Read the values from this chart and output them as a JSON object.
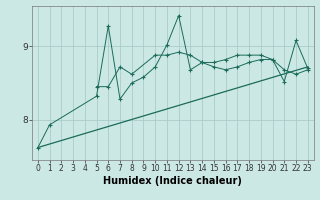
{
  "xlabel": "Humidex (Indice chaleur)",
  "bg_color": "#cce8e4",
  "line_color": "#1a6b5a",
  "grid_color": "#aacccc",
  "x_values": [
    0,
    1,
    2,
    3,
    4,
    5,
    6,
    7,
    8,
    9,
    10,
    11,
    12,
    13,
    14,
    15,
    16,
    17,
    18,
    19,
    20,
    21,
    22,
    23
  ],
  "series1": [
    7.62,
    7.93,
    null,
    null,
    null,
    8.32,
    9.28,
    8.28,
    8.5,
    8.58,
    8.72,
    9.02,
    9.42,
    8.68,
    8.78,
    8.72,
    8.68,
    8.72,
    8.78,
    8.82,
    8.82,
    8.52,
    9.08,
    8.7
  ],
  "series2": [
    null,
    null,
    null,
    null,
    null,
    8.45,
    8.45,
    8.72,
    8.62,
    null,
    8.88,
    8.88,
    8.92,
    8.88,
    8.78,
    8.78,
    8.82,
    8.88,
    8.88,
    8.88,
    8.82,
    8.68,
    8.62,
    8.68
  ],
  "series3_x": [
    0,
    23
  ],
  "series3_y": [
    7.62,
    8.72
  ],
  "ylim": [
    7.45,
    9.55
  ],
  "xlim": [
    -0.5,
    23.5
  ],
  "yticks": [
    8,
    9
  ],
  "xticks": [
    0,
    1,
    2,
    3,
    4,
    5,
    6,
    7,
    8,
    9,
    10,
    11,
    12,
    13,
    14,
    15,
    16,
    17,
    18,
    19,
    20,
    21,
    22,
    23
  ],
  "tick_fontsize": 5.5,
  "xlabel_fontsize": 7
}
